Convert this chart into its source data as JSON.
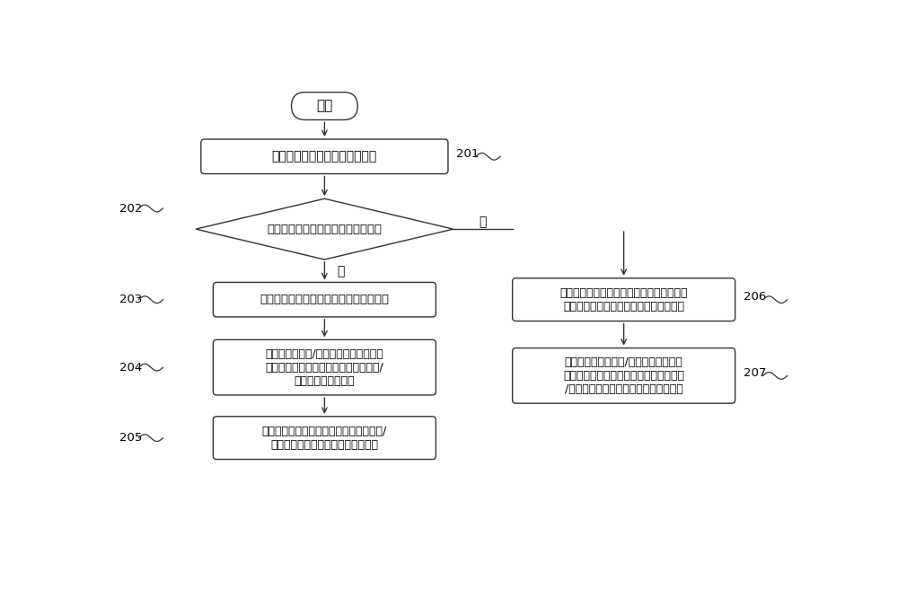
{
  "bg_color": "#ffffff",
  "line_color": "#333333",
  "text_color": "#000000",
  "start_text": "开始",
  "box201_text": "获取用户设定的定时开关机模式",
  "box201_label": "201",
  "diamond202_text": "定时开关机模式是否为多日定时模式",
  "diamond202_label": "202",
  "yes_label": "是",
  "no_label": "否",
  "box203_text": "获取与多日定时模式对应的定时时间信息",
  "box203_label": "203",
  "box204_line1": "根据定时开机和/或定时关机时间，生成",
  "box204_line2": "定时周期内每天的定时开机时间信息和/",
  "box204_line3": "或定时关机时间信息",
  "box204_label": "204",
  "box205_line1": "将定时周期内每天的定时开机时间信息和/",
  "box205_line2": "或定时关机时间信息发送给空调主机",
  "box205_label": "205",
  "box206_line1": "当确定定时开关机模式为单日定时模式时，",
  "box206_line2": "获取与单日定时模式对应的定时时间信息",
  "box206_label": "206",
  "box207_line1": "根据定时开机时间和/或定时关机时间，",
  "box207_line2": "生成在定时日期内的定时开机时间信息和",
  "box207_line3": "/或定时关机时间信息并发送给空调主机",
  "box207_label": "207"
}
